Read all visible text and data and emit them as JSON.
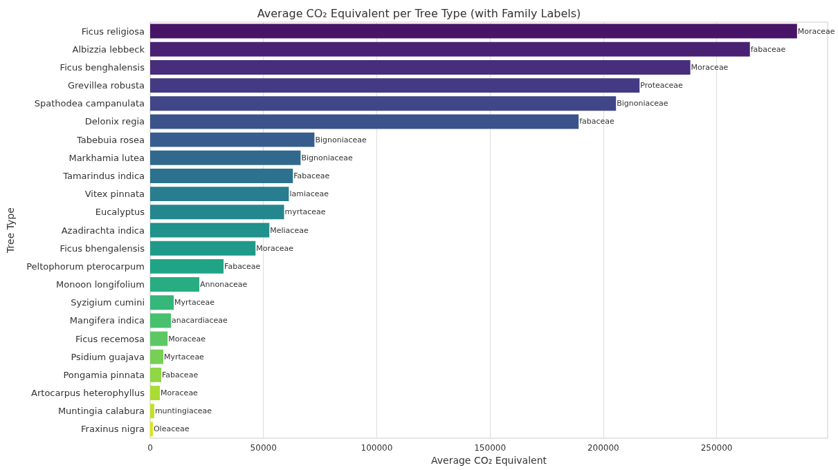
{
  "chart_data": {
    "type": "bar",
    "orientation": "horizontal",
    "title": "Average CO₂ Equivalent per Tree Type (with Family Labels)",
    "xlabel": "Average CO₂ Equivalent",
    "ylabel": "Tree Type",
    "categories": [
      "Ficus religiosa",
      "Albizzia lebbeck",
      "Ficus benghalensis",
      "Grevillea robusta",
      "Spathodea campanulata",
      "Delonix regia",
      "Tabebuia rosea",
      "Markhamia lutea",
      "Tamarindus indica",
      "Vitex pinnata",
      "Eucalyptus",
      "Azadirachta indica",
      "Ficus bhengalensis",
      "Peltophorum pterocarpum",
      "Monoon longifolium",
      "Syzigium cumini",
      "Mangifera indica",
      "Ficus recemosa",
      "Psidium guajava",
      "Pongamia pinnata",
      "Artocarpus heterophyllus",
      "Muntingia calabura",
      "Fraxinus nigra"
    ],
    "values": [
      285500,
      264700,
      238400,
      216000,
      205600,
      189100,
      72500,
      66400,
      63000,
      61200,
      59100,
      52600,
      46500,
      32400,
      21700,
      10400,
      9200,
      7700,
      5800,
      4900,
      4300,
      1800,
      1200
    ],
    "value_labels": [
      "Moraceae",
      "fabaceae",
      "Moraceae",
      "Proteaceae",
      "Bignoniaceae",
      "fabaceae",
      "Bignoniaceae",
      "Bignoniaceae",
      "Fabaceae",
      "lamiaceae",
      "myrtaceae",
      "Meliaceae",
      "Moraceae",
      "Fabaceae",
      "Annonaceae",
      "Myrtaceae",
      "anacardiaceae",
      "Moraceae",
      "Myrtaceae",
      "Fabaceae",
      "Moraceae",
      "muntingiaceae",
      "Oleaceae"
    ],
    "colors": [
      "#481467",
      "#482173",
      "#472d7b",
      "#443a83",
      "#404688",
      "#3b528b",
      "#365d8d",
      "#31688e",
      "#2c728e",
      "#287d8e",
      "#24878e",
      "#21918c",
      "#1f9a8a",
      "#20a486",
      "#27ad81",
      "#35b779",
      "#47c16e",
      "#5dc863",
      "#75d054",
      "#8fd744",
      "#aadc32",
      "#c5e021",
      "#dde318"
    ],
    "xlim": [
      0,
      299000
    ],
    "xticks": [
      0,
      50000,
      100000,
      150000,
      200000,
      250000
    ],
    "grid": "x"
  }
}
